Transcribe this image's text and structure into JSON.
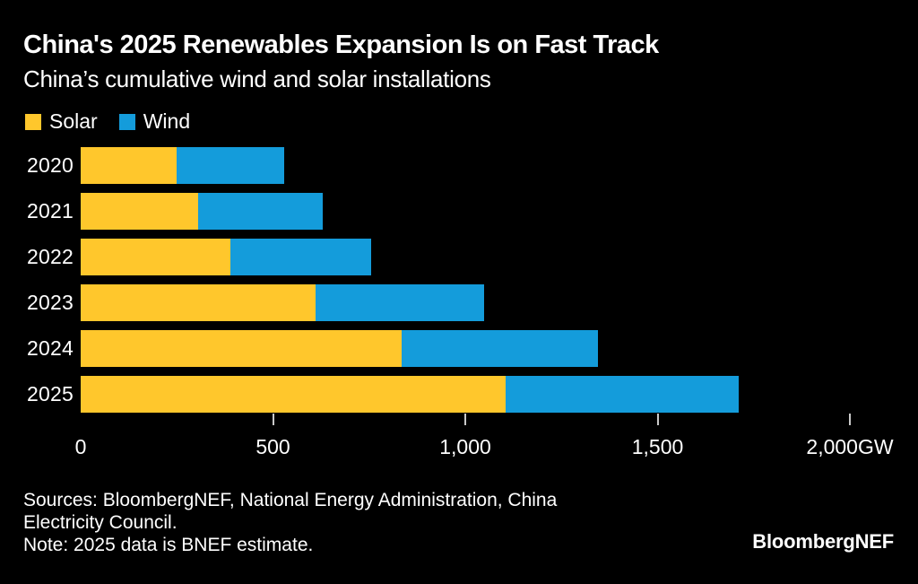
{
  "header": {
    "title": "China's 2025 Renewables Expansion Is on Fast Track",
    "subtitle": "China’s cumulative wind and solar installations"
  },
  "legend": {
    "items": [
      {
        "label": "Solar",
        "color": "#FFC72C"
      },
      {
        "label": "Wind",
        "color": "#149CDB"
      }
    ]
  },
  "chart_data": {
    "type": "bar",
    "orientation": "horizontal",
    "stacked": true,
    "title": "China's 2025 Renewables Expansion Is on Fast Track",
    "subtitle": "China’s cumulative wind and solar installations",
    "categories": [
      "2020",
      "2021",
      "2022",
      "2023",
      "2024",
      "2025"
    ],
    "series": [
      {
        "name": "Solar",
        "color": "#FFC72C",
        "values": [
          250,
          305,
          390,
          610,
          835,
          1105
        ]
      },
      {
        "name": "Wind",
        "color": "#149CDB",
        "values": [
          280,
          325,
          365,
          440,
          510,
          605
        ]
      }
    ],
    "totals": [
      530,
      630,
      755,
      1050,
      1345,
      1710
    ],
    "unit": "GW",
    "xlim": [
      0,
      2000
    ],
    "xticks": [
      0,
      500,
      1000,
      1500,
      2000
    ],
    "xtick_labels": [
      "0",
      "500",
      "1,000",
      "1,500",
      "2,000GW"
    ],
    "grid": false,
    "legend_position": "top-left"
  },
  "footer": {
    "sources_line1": "Sources: BloombergNEF, National Energy Administration, China",
    "sources_line2": "Electricity Council.",
    "note": "Note: 2025 data is BNEF estimate.",
    "logo": "BloombergNEF"
  },
  "colors": {
    "background": "#000000",
    "text": "#FFFFFF",
    "solar": "#FFC72C",
    "wind": "#149CDB",
    "tick": "#C9C9C9"
  }
}
